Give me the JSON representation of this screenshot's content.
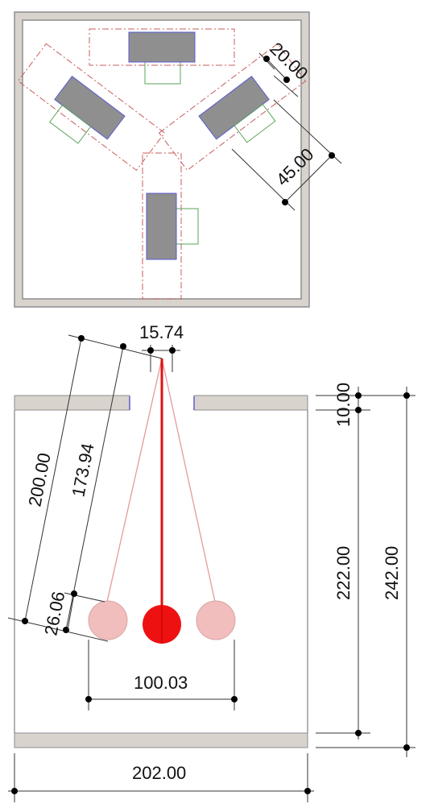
{
  "plan_dimensions": {
    "offset": "20.00",
    "spacing": "45.00"
  },
  "section_dimensions": {
    "opening_width": "15.74",
    "pendulum_length_outer": "200.00",
    "pendulum_length_inner": "173.94",
    "bob_diameter": "26.06",
    "swing_width": "100.03",
    "slab_thickness": "10.00",
    "inner_height": "222.00",
    "total_height": "242.00",
    "total_width": "202.00"
  },
  "colors": {
    "wall": "#d9d3ce",
    "wall_stroke": "#8e8e8e",
    "furniture": "#8f8f8f",
    "furniture_stroke": "#5a5ad0",
    "zone": "#c85c5c",
    "green": "#5aa55a",
    "bob_active": "#ee1111",
    "bob_ghost": "#f2bdbd"
  }
}
